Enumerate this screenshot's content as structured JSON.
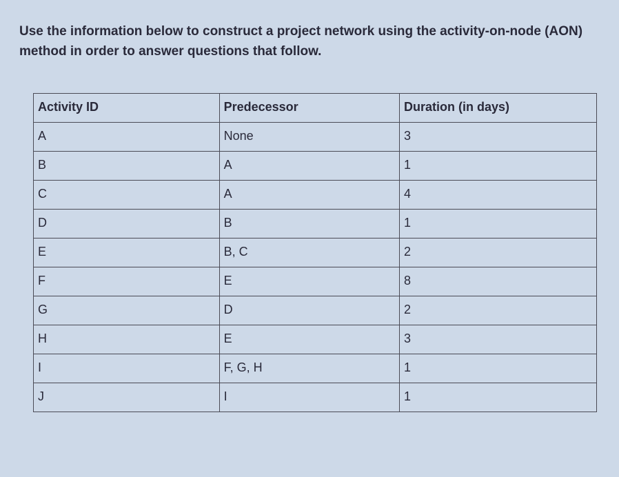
{
  "instruction": "Use the information below to construct a project network using the activity-on-node (AON) method in order to answer questions that follow.",
  "table": {
    "columns": [
      "Activity ID",
      "Predecessor",
      "Duration (in days)"
    ],
    "rows": [
      [
        "A",
        "None",
        "3"
      ],
      [
        "B",
        "A",
        "1"
      ],
      [
        "C",
        "A",
        "4"
      ],
      [
        "D",
        "B",
        "1"
      ],
      [
        "E",
        "B, C",
        "2"
      ],
      [
        "F",
        "E",
        "8"
      ],
      [
        "G",
        "D",
        "2"
      ],
      [
        "H",
        "E",
        "3"
      ],
      [
        "I",
        "F, G, H",
        "1"
      ],
      [
        "J",
        "I",
        "1"
      ]
    ],
    "border_color": "#4a4a55",
    "text_color": "#2a2a3a",
    "header_font_weight": "700",
    "cell_fontsize": 18,
    "background_color": "#cdd9e8"
  }
}
